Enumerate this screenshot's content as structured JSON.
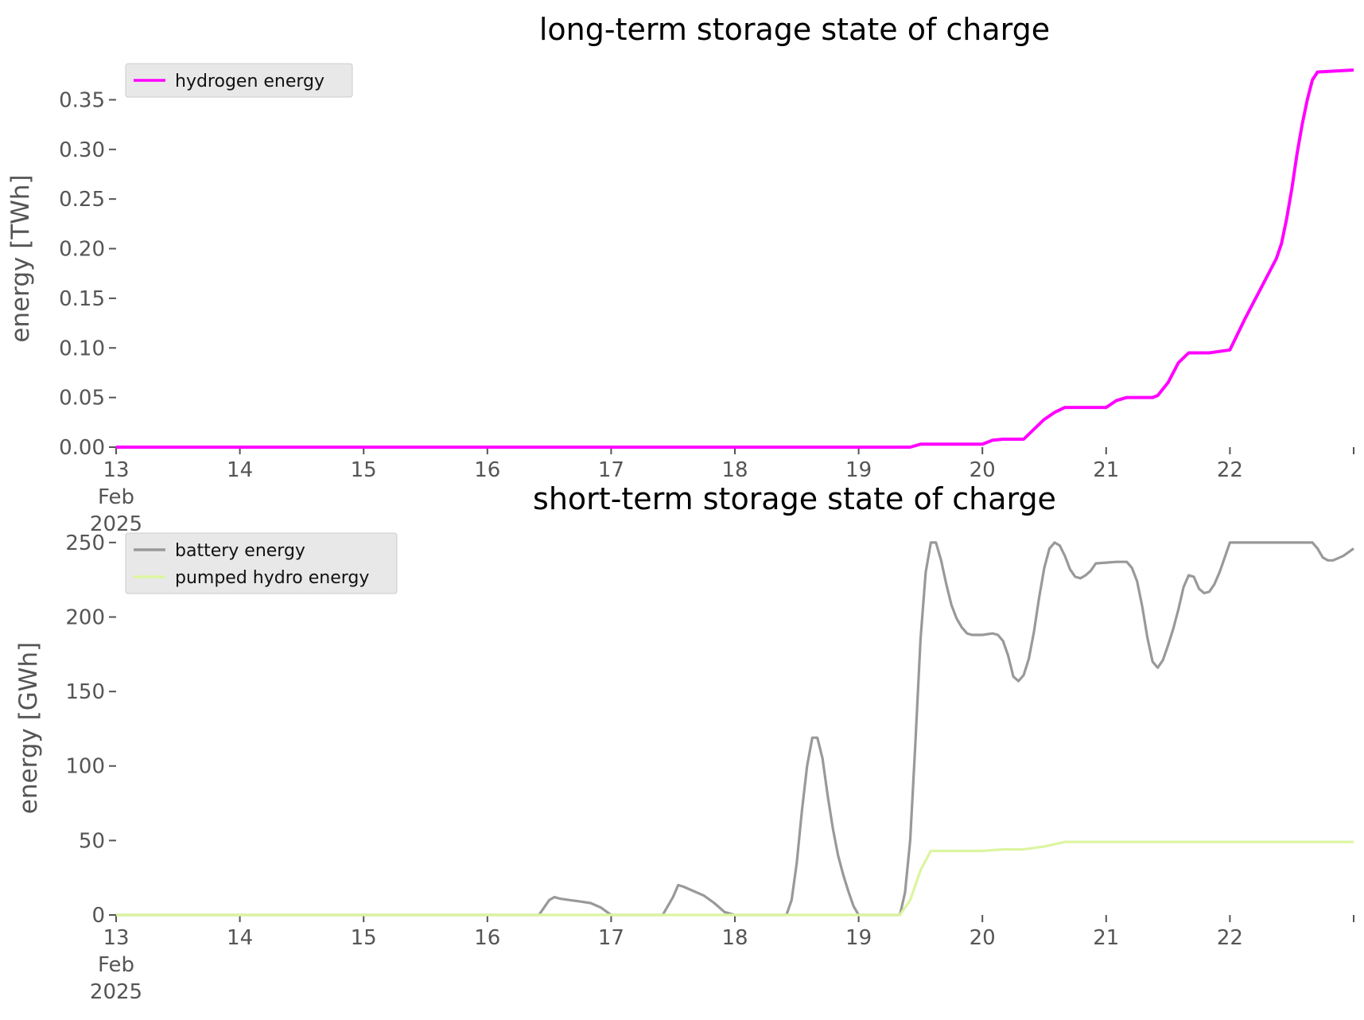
{
  "chart_data": [
    {
      "type": "line",
      "title": "long-term storage state of charge",
      "xlabel": "",
      "ylabel": "energy [TWh]",
      "x_tick_labels": [
        "13\nFeb\n2025",
        "14",
        "15",
        "16",
        "17",
        "18",
        "19",
        "20",
        "21",
        "22"
      ],
      "y_tick_labels": [
        "0.00",
        "0.05",
        "0.10",
        "0.15",
        "0.20",
        "0.25",
        "0.30",
        "0.35"
      ],
      "xlim": [
        "2025-02-13 00:00",
        "2025-02-23 00:00"
      ],
      "ylim": [
        0,
        0.38
      ],
      "grid": false,
      "legend": "top-left",
      "series": [
        {
          "name": "hydrogen energy",
          "color": "#ff00ff",
          "points": [
            [
              "2025-02-13 00:00",
              0.0
            ],
            [
              "2025-02-19 10:00",
              0.0
            ],
            [
              "2025-02-19 12:00",
              0.003
            ],
            [
              "2025-02-19 22:00",
              0.003
            ],
            [
              "2025-02-20 00:00",
              0.003
            ],
            [
              "2025-02-20 02:00",
              0.007
            ],
            [
              "2025-02-20 04:00",
              0.008
            ],
            [
              "2025-02-20 07:00",
              0.008
            ],
            [
              "2025-02-20 08:00",
              0.008
            ],
            [
              "2025-02-20 10:00",
              0.018
            ],
            [
              "2025-02-20 12:00",
              0.028
            ],
            [
              "2025-02-20 14:00",
              0.035
            ],
            [
              "2025-02-20 16:00",
              0.04
            ],
            [
              "2025-02-20 23:00",
              0.04
            ],
            [
              "2025-02-21 00:00",
              0.04
            ],
            [
              "2025-02-21 02:00",
              0.047
            ],
            [
              "2025-02-21 04:00",
              0.05
            ],
            [
              "2025-02-21 09:00",
              0.05
            ],
            [
              "2025-02-21 10:00",
              0.052
            ],
            [
              "2025-02-21 12:00",
              0.065
            ],
            [
              "2025-02-21 14:00",
              0.085
            ],
            [
              "2025-02-21 16:00",
              0.095
            ],
            [
              "2025-02-21 20:00",
              0.095
            ],
            [
              "2025-02-22 00:00",
              0.098
            ],
            [
              "2025-02-22 03:00",
              0.13
            ],
            [
              "2025-02-22 06:00",
              0.16
            ],
            [
              "2025-02-22 09:00",
              0.19
            ],
            [
              "2025-02-22 10:00",
              0.205
            ],
            [
              "2025-02-22 11:00",
              0.23
            ],
            [
              "2025-02-22 12:00",
              0.26
            ],
            [
              "2025-02-22 13:00",
              0.295
            ],
            [
              "2025-02-22 14:00",
              0.325
            ],
            [
              "2025-02-22 15:00",
              0.35
            ],
            [
              "2025-02-22 16:00",
              0.37
            ],
            [
              "2025-02-22 17:00",
              0.378
            ],
            [
              "2025-02-23 00:00",
              0.38
            ]
          ]
        }
      ]
    },
    {
      "type": "line",
      "title": "short-term storage state of charge",
      "xlabel": "",
      "ylabel": "energy [GWh]",
      "x_tick_labels": [
        "13\nFeb\n2025",
        "14",
        "15",
        "16",
        "17",
        "18",
        "19",
        "20",
        "21",
        "22"
      ],
      "y_tick_labels": [
        "0",
        "50",
        "100",
        "150",
        "200",
        "250"
      ],
      "xlim": [
        "2025-02-13 00:00",
        "2025-02-23 00:00"
      ],
      "ylim": [
        0,
        251
      ],
      "grid": false,
      "legend": "top-left",
      "series": [
        {
          "name": "battery energy",
          "color": "#999999",
          "points": [
            [
              "2025-02-13 00:00",
              0
            ],
            [
              "2025-02-16 10:00",
              0
            ],
            [
              "2025-02-16 12:00",
              10
            ],
            [
              "2025-02-16 13:00",
              12
            ],
            [
              "2025-02-16 14:00",
              11
            ],
            [
              "2025-02-16 16:00",
              10
            ],
            [
              "2025-02-16 18:00",
              9
            ],
            [
              "2025-02-16 20:00",
              8
            ],
            [
              "2025-02-16 22:00",
              5
            ],
            [
              "2025-02-17 00:00",
              0
            ],
            [
              "2025-02-17 10:00",
              0
            ],
            [
              "2025-02-17 12:00",
              12
            ],
            [
              "2025-02-17 13:00",
              20
            ],
            [
              "2025-02-17 14:00",
              19
            ],
            [
              "2025-02-17 16:00",
              16
            ],
            [
              "2025-02-17 18:00",
              13
            ],
            [
              "2025-02-17 20:00",
              8
            ],
            [
              "2025-02-17 22:00",
              2
            ],
            [
              "2025-02-18 00:00",
              0
            ],
            [
              "2025-02-18 10:00",
              0
            ],
            [
              "2025-02-18 11:00",
              10
            ],
            [
              "2025-02-18 12:00",
              35
            ],
            [
              "2025-02-18 13:00",
              70
            ],
            [
              "2025-02-18 14:00",
              100
            ],
            [
              "2025-02-18 15:00",
              119
            ],
            [
              "2025-02-18 16:00",
              119
            ],
            [
              "2025-02-18 17:00",
              105
            ],
            [
              "2025-02-18 18:00",
              80
            ],
            [
              "2025-02-18 19:00",
              58
            ],
            [
              "2025-02-18 20:00",
              40
            ],
            [
              "2025-02-18 21:00",
              27
            ],
            [
              "2025-02-18 22:00",
              16
            ],
            [
              "2025-02-18 23:00",
              6
            ],
            [
              "2025-02-19 00:00",
              0
            ],
            [
              "2025-02-19 08:00",
              0
            ],
            [
              "2025-02-19 09:00",
              15
            ],
            [
              "2025-02-19 10:00",
              50
            ],
            [
              "2025-02-19 11:00",
              115
            ],
            [
              "2025-02-19 12:00",
              185
            ],
            [
              "2025-02-19 13:00",
              230
            ],
            [
              "2025-02-19 14:00",
              250
            ],
            [
              "2025-02-19 15:00",
              250
            ],
            [
              "2025-02-19 16:00",
              238
            ],
            [
              "2025-02-19 17:00",
              222
            ],
            [
              "2025-02-19 18:00",
              208
            ],
            [
              "2025-02-19 19:00",
              199
            ],
            [
              "2025-02-19 20:00",
              193
            ],
            [
              "2025-02-19 21:00",
              189
            ],
            [
              "2025-02-19 22:00",
              188
            ],
            [
              "2025-02-20 00:00",
              188
            ],
            [
              "2025-02-20 02:00",
              189
            ],
            [
              "2025-02-20 03:00",
              188
            ],
            [
              "2025-02-20 04:00",
              184
            ],
            [
              "2025-02-20 05:00",
              174
            ],
            [
              "2025-02-20 06:00",
              160
            ],
            [
              "2025-02-20 07:00",
              157
            ],
            [
              "2025-02-20 08:00",
              161
            ],
            [
              "2025-02-20 09:00",
              172
            ],
            [
              "2025-02-20 10:00",
              190
            ],
            [
              "2025-02-20 11:00",
              213
            ],
            [
              "2025-02-20 12:00",
              233
            ],
            [
              "2025-02-20 13:00",
              246
            ],
            [
              "2025-02-20 14:00",
              250
            ],
            [
              "2025-02-20 15:00",
              248
            ],
            [
              "2025-02-20 16:00",
              241
            ],
            [
              "2025-02-20 17:00",
              232
            ],
            [
              "2025-02-20 18:00",
              227
            ],
            [
              "2025-02-20 19:00",
              226
            ],
            [
              "2025-02-20 20:00",
              228
            ],
            [
              "2025-02-20 21:00",
              231
            ],
            [
              "2025-02-20 22:00",
              236
            ],
            [
              "2025-02-21 02:00",
              237
            ],
            [
              "2025-02-21 04:00",
              237
            ],
            [
              "2025-02-21 05:00",
              233
            ],
            [
              "2025-02-21 06:00",
              224
            ],
            [
              "2025-02-21 07:00",
              207
            ],
            [
              "2025-02-21 08:00",
              186
            ],
            [
              "2025-02-21 09:00",
              170
            ],
            [
              "2025-02-21 10:00",
              166
            ],
            [
              "2025-02-21 11:00",
              171
            ],
            [
              "2025-02-21 12:00",
              181
            ],
            [
              "2025-02-21 13:00",
              192
            ],
            [
              "2025-02-21 14:00",
              205
            ],
            [
              "2025-02-21 15:00",
              220
            ],
            [
              "2025-02-21 16:00",
              228
            ],
            [
              "2025-02-21 17:00",
              227
            ],
            [
              "2025-02-21 18:00",
              219
            ],
            [
              "2025-02-21 19:00",
              216
            ],
            [
              "2025-02-21 20:00",
              217
            ],
            [
              "2025-02-21 21:00",
              222
            ],
            [
              "2025-02-21 22:00",
              230
            ],
            [
              "2025-02-21 23:00",
              240
            ],
            [
              "2025-02-22 00:00",
              250
            ],
            [
              "2025-02-22 15:00",
              250
            ],
            [
              "2025-02-22 16:00",
              250
            ],
            [
              "2025-02-22 17:00",
              246
            ],
            [
              "2025-02-22 18:00",
              240
            ],
            [
              "2025-02-22 19:00",
              238
            ],
            [
              "2025-02-22 20:00",
              238
            ],
            [
              "2025-02-22 22:00",
              241
            ],
            [
              "2025-02-23 00:00",
              246
            ]
          ]
        },
        {
          "name": "pumped hydro energy",
          "color": "#dcf5a0",
          "points": [
            [
              "2025-02-13 00:00",
              0
            ],
            [
              "2025-02-19 08:00",
              0
            ],
            [
              "2025-02-19 10:00",
              10
            ],
            [
              "2025-02-19 12:00",
              30
            ],
            [
              "2025-02-19 14:00",
              43
            ],
            [
              "2025-02-19 16:00",
              43
            ],
            [
              "2025-02-20 00:00",
              43
            ],
            [
              "2025-02-20 04:00",
              44
            ],
            [
              "2025-02-20 08:00",
              44
            ],
            [
              "2025-02-20 12:00",
              46
            ],
            [
              "2025-02-20 16:00",
              49
            ],
            [
              "2025-02-21 00:00",
              49
            ],
            [
              "2025-02-22 00:00",
              49
            ],
            [
              "2025-02-23 00:00",
              49
            ]
          ]
        }
      ]
    }
  ]
}
